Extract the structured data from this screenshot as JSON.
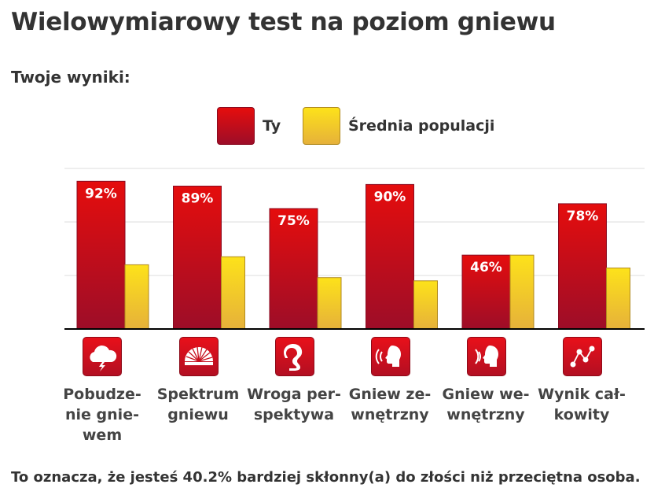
{
  "page": {
    "title": "Wielowymiarowy test na poziom gniewu",
    "subtitle": "Twoje wyniki:",
    "summary": "To oznacza, że jesteś 40.2% bardziej skłonny(a) do złości niż przeciętna osoba."
  },
  "legend": {
    "you": "Ty",
    "population": "Średnia populacji"
  },
  "colors": {
    "you_top": "#e50d0d",
    "you_bottom": "#9d0d28",
    "pop_top": "#fde21a",
    "pop_bottom": "#e6b13a",
    "grid": "#dddddd",
    "axis": "#000000"
  },
  "chart_data": {
    "type": "bar",
    "title": "Wielowymiarowy test na poziom gniewu",
    "xlabel": "",
    "ylabel": "",
    "ylim": [
      0,
      100
    ],
    "grid": true,
    "legend_position": "top",
    "categories": [
      "Pobudze-\nnie gnie-\nwem",
      "Spektrum\ngniewu",
      "Wroga per-\nspektywa",
      "Gniew ze-\nwnętrzny",
      "Gniew we-\nwnętrzny",
      "Wynik cał-\nkowity"
    ],
    "icons": [
      "storm-cloud-icon",
      "fan-spectrum-icon",
      "cobra-icon",
      "shouting-head-icon",
      "listening-head-icon",
      "network-nodes-icon"
    ],
    "series": [
      {
        "name": "Ty",
        "values": [
          92,
          89,
          75,
          90,
          46,
          78
        ],
        "labels": [
          "92%",
          "89%",
          "75%",
          "90%",
          "46%",
          "78%"
        ]
      },
      {
        "name": "Średnia populacji",
        "values": [
          40,
          45,
          32,
          30,
          46,
          38
        ]
      }
    ]
  }
}
